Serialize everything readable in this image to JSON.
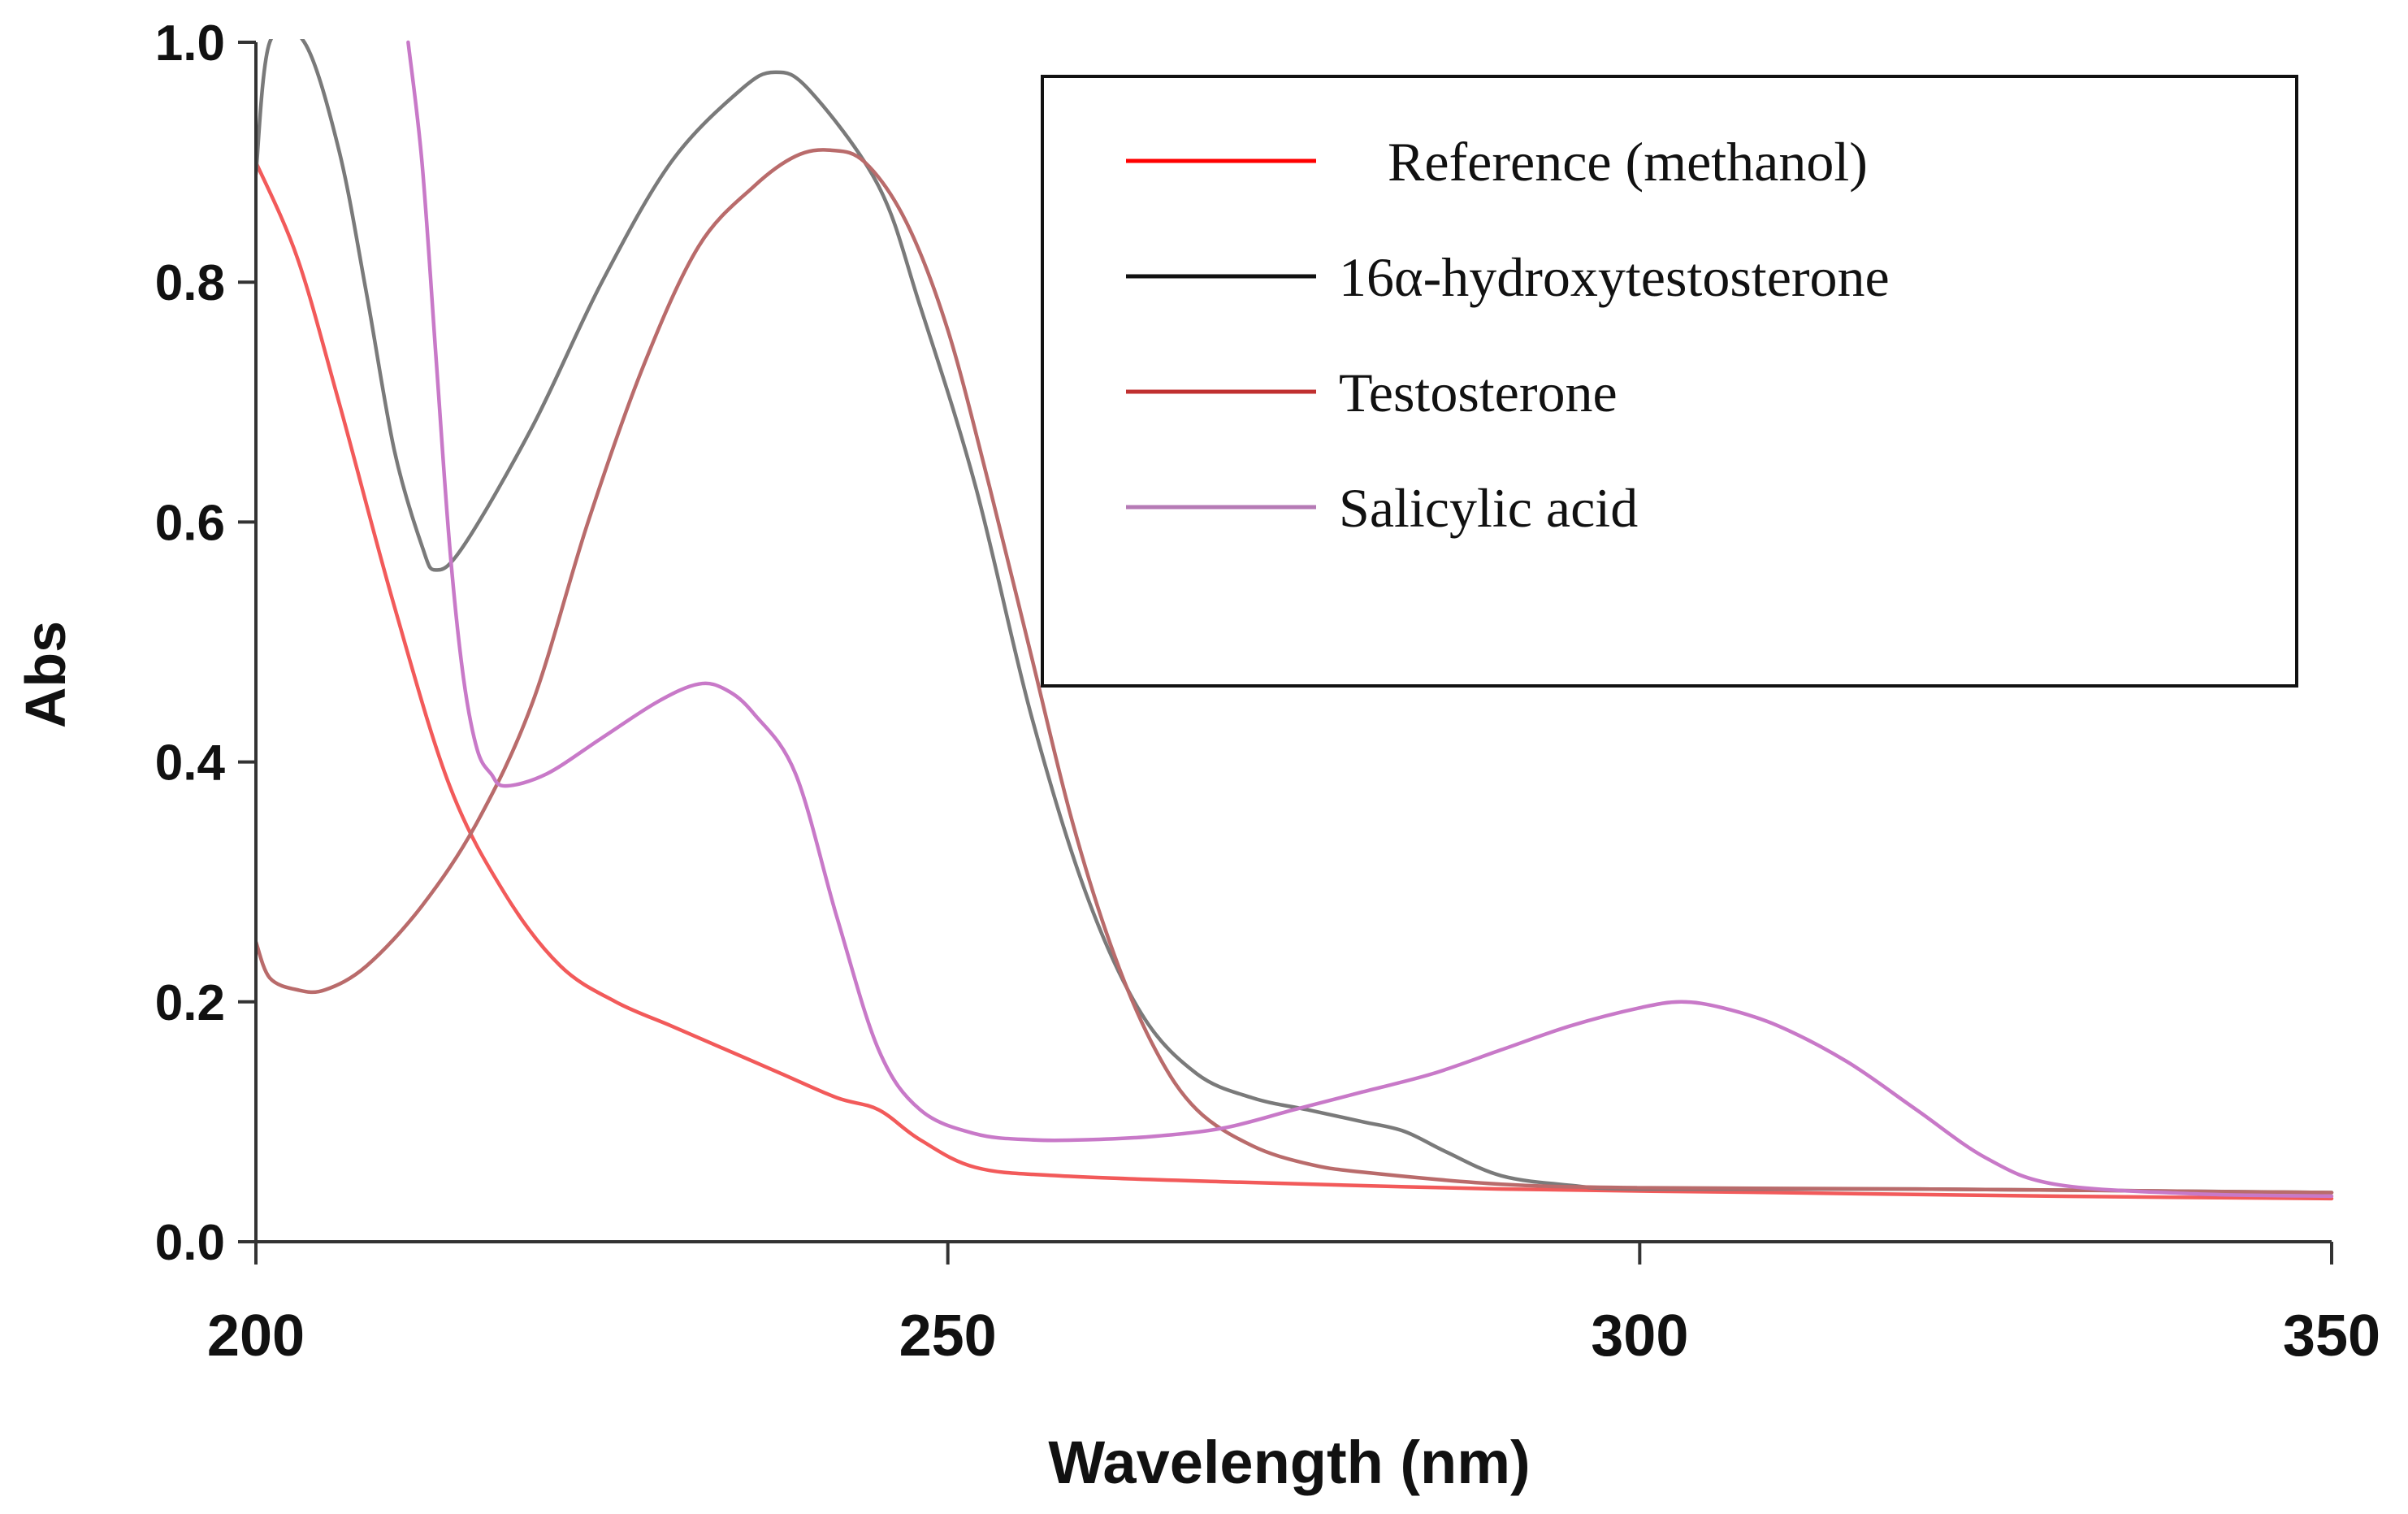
{
  "chart_data": {
    "type": "line",
    "title": "",
    "xlabel": "Wavelength (nm)",
    "ylabel": "Abs",
    "xlim": [
      200,
      350
    ],
    "ylim": [
      0.0,
      1.0
    ],
    "x_ticks": [
      200,
      250,
      300,
      350
    ],
    "x_tick_labels": [
      "200",
      "250",
      "300",
      "350"
    ],
    "y_ticks": [
      0.0,
      0.2,
      0.4,
      0.6,
      0.8,
      1.0
    ],
    "y_tick_labels": [
      "0.0",
      "0.2",
      "0.4",
      "0.6",
      "0.8",
      "1.0"
    ],
    "grid": false,
    "legend_position": "top-right",
    "series": [
      {
        "name": "Reference (methanol)",
        "color": "#f25a5a",
        "legend_color": "#ff0000",
        "points": [
          [
            200,
            0.9
          ],
          [
            203,
            0.82
          ],
          [
            206,
            0.7
          ],
          [
            210,
            0.53
          ],
          [
            214,
            0.38
          ],
          [
            218,
            0.29
          ],
          [
            222,
            0.23
          ],
          [
            226,
            0.2
          ],
          [
            230,
            0.18
          ],
          [
            234,
            0.16
          ],
          [
            238,
            0.14
          ],
          [
            242,
            0.12
          ],
          [
            245,
            0.11
          ],
          [
            248,
            0.085
          ],
          [
            252,
            0.062
          ],
          [
            258,
            0.055
          ],
          [
            270,
            0.05
          ],
          [
            290,
            0.044
          ],
          [
            310,
            0.041
          ],
          [
            330,
            0.038
          ],
          [
            350,
            0.036
          ]
        ]
      },
      {
        "name": "16α-hydroxytestosterone",
        "color": "#7a7a7a",
        "legend_color": "#111111",
        "points": [
          [
            200,
            0.89
          ],
          [
            201,
            1.0
          ],
          [
            203.5,
            1.0
          ],
          [
            206,
            0.91
          ],
          [
            208,
            0.79
          ],
          [
            210,
            0.66
          ],
          [
            212,
            0.58
          ],
          [
            213,
            0.56
          ],
          [
            215,
            0.58
          ],
          [
            220,
            0.68
          ],
          [
            225,
            0.8
          ],
          [
            230,
            0.9
          ],
          [
            235,
            0.96
          ],
          [
            237.5,
            0.975
          ],
          [
            240,
            0.96
          ],
          [
            245,
            0.88
          ],
          [
            248,
            0.78
          ],
          [
            252,
            0.63
          ],
          [
            256,
            0.44
          ],
          [
            260,
            0.29
          ],
          [
            264,
            0.19
          ],
          [
            268,
            0.14
          ],
          [
            272,
            0.12
          ],
          [
            276,
            0.11
          ],
          [
            280,
            0.1
          ],
          [
            283,
            0.092
          ],
          [
            286,
            0.075
          ],
          [
            290,
            0.055
          ],
          [
            295,
            0.047
          ],
          [
            300,
            0.044
          ],
          [
            320,
            0.044
          ],
          [
            350,
            0.041
          ]
        ]
      },
      {
        "name": "Testosterone",
        "color": "#b96b6b",
        "legend_color": "#c03030",
        "points": [
          [
            200,
            0.25
          ],
          [
            201,
            0.22
          ],
          [
            203,
            0.21
          ],
          [
            205,
            0.21
          ],
          [
            208,
            0.23
          ],
          [
            212,
            0.28
          ],
          [
            216,
            0.35
          ],
          [
            220,
            0.45
          ],
          [
            224,
            0.6
          ],
          [
            228,
            0.73
          ],
          [
            232,
            0.83
          ],
          [
            236,
            0.88
          ],
          [
            239,
            0.905
          ],
          [
            241.5,
            0.91
          ],
          [
            244,
            0.9
          ],
          [
            247,
            0.85
          ],
          [
            250,
            0.76
          ],
          [
            253,
            0.63
          ],
          [
            256,
            0.49
          ],
          [
            259,
            0.35
          ],
          [
            262,
            0.24
          ],
          [
            265,
            0.16
          ],
          [
            268,
            0.11
          ],
          [
            272,
            0.08
          ],
          [
            276,
            0.065
          ],
          [
            280,
            0.058
          ],
          [
            290,
            0.048
          ],
          [
            300,
            0.045
          ],
          [
            320,
            0.044
          ],
          [
            350,
            0.041
          ]
        ]
      },
      {
        "name": "Salicylic acid",
        "color": "#c879c8",
        "legend_color": "#b57ab5",
        "points": [
          [
            211,
            1.0
          ],
          [
            212,
            0.9
          ],
          [
            213,
            0.74
          ],
          [
            214,
            0.58
          ],
          [
            215,
            0.47
          ],
          [
            216,
            0.41
          ],
          [
            217,
            0.39
          ],
          [
            218,
            0.38
          ],
          [
            221,
            0.39
          ],
          [
            225,
            0.42
          ],
          [
            229,
            0.45
          ],
          [
            232,
            0.465
          ],
          [
            234,
            0.46
          ],
          [
            236,
            0.44
          ],
          [
            239,
            0.39
          ],
          [
            242,
            0.27
          ],
          [
            245,
            0.16
          ],
          [
            248,
            0.11
          ],
          [
            252,
            0.09
          ],
          [
            256,
            0.085
          ],
          [
            260,
            0.085
          ],
          [
            265,
            0.088
          ],
          [
            270,
            0.095
          ],
          [
            275,
            0.11
          ],
          [
            280,
            0.125
          ],
          [
            285,
            0.14
          ],
          [
            290,
            0.16
          ],
          [
            295,
            0.18
          ],
          [
            300,
            0.195
          ],
          [
            303,
            0.2
          ],
          [
            306,
            0.195
          ],
          [
            310,
            0.18
          ],
          [
            315,
            0.15
          ],
          [
            320,
            0.11
          ],
          [
            325,
            0.07
          ],
          [
            330,
            0.048
          ],
          [
            340,
            0.04
          ],
          [
            350,
            0.038
          ]
        ]
      }
    ]
  }
}
